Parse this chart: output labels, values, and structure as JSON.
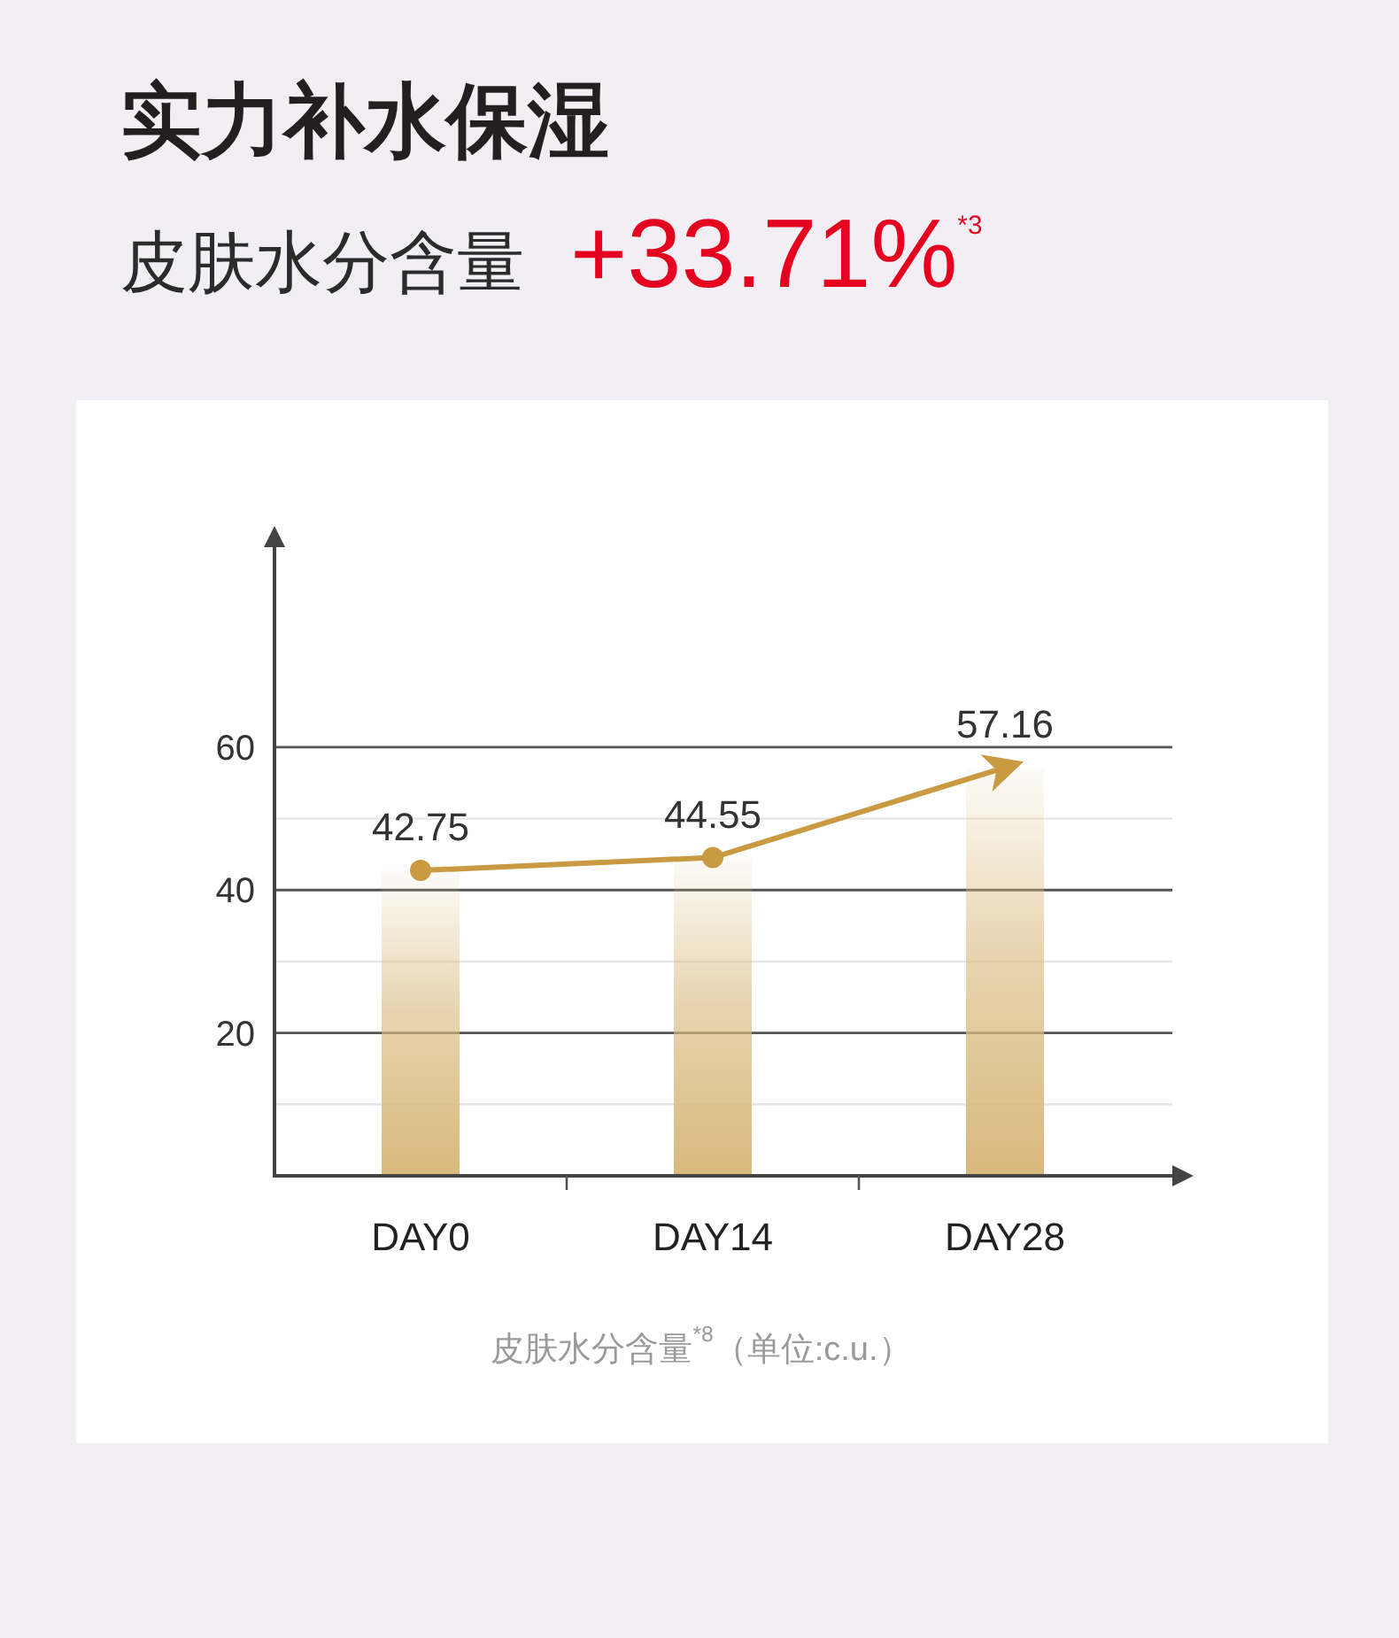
{
  "chart_data": {
    "type": "bar",
    "title": "实力补水保湿",
    "subtitle": "皮肤水分含量",
    "annotations": [
      "+33.71%$^{*3}$",
      "皮肤水分含量$^{*8}$（单位:c.u.）"
    ],
    "categories": [
      "DAY0",
      "DAY14",
      "DAY28"
    ],
    "series": [
      {
        "color": "#d8b97c",
        "values": [
          42.75,
          44.55,
          57.16
        ]
      },
      {
        "type": "line",
        "color": "#c99a42",
        "marker": "circle",
        "values": [
          42.75,
          44.55,
          57.16
        ],
        "value_labels": [
          "42.75",
          "44.55",
          "57.16"
        ]
      }
    ],
    "ylim": [
      0,
      88
    ],
    "yticks": [
      {
        "value": 10,
        "label": null
      },
      20,
      {
        "value": 30,
        "label": null
      },
      40,
      {
        "value": 50,
        "label": null
      },
      60
    ],
    "grid": "y"
  }
}
